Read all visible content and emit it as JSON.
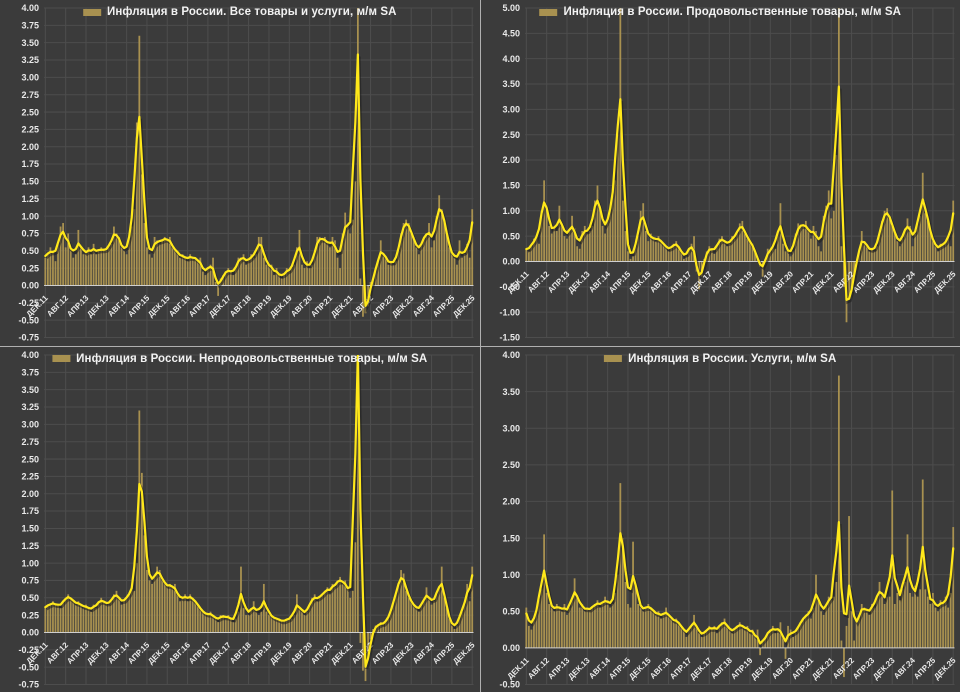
{
  "page": {
    "background": "#3b3b3b",
    "divider_color": "#b0b0b0"
  },
  "colors": {
    "bar": "#a89150",
    "line": "#ffe81a",
    "line_shadow": "#1e1e1e",
    "grid": "#4d4d4d",
    "axis_text": "#e9e9e9",
    "zero_line": "#cfcfcf"
  },
  "chart_data": {
    "type": "bar",
    "subtype": "bar with smoothed trend line overlay, 4 panels",
    "frequency": "monthly",
    "x_start": "ДЕК.11",
    "x_end": "ДЕК.25",
    "tick_every_months": 8,
    "x_tick_labels": [
      "ДЕК.11",
      "АВГ.12",
      "АПР.13",
      "ДЕК.13",
      "АВГ.14",
      "АПР.15",
      "ДЕК.15",
      "АВГ.16",
      "АПР.17",
      "ДЕК.17",
      "АВГ.18",
      "АПР.19",
      "ДЕК.19",
      "АВГ.20",
      "АПР.21",
      "ДЕК.21",
      "АВГ.22",
      "АПР.23",
      "ДЕК.23",
      "АВГ.24",
      "АПР.25",
      "ДЕК.25"
    ],
    "legend_position": "top-center inside plot",
    "grid": "on",
    "line_derivation": "smoothed trend of the same series (rendered as 5-point weighted moving average 0.1/0.2/0.4/0.2/0.1); bar values above y_max are clipped at chart top as in source",
    "charts": [
      {
        "legend": "Инфляция в России. Все товары и услуги, м/м SA",
        "y_min": -0.75,
        "y_max": 4.0,
        "y_step": 0.25,
        "values": [
          0.4,
          0.45,
          0.55,
          0.5,
          0.35,
          0.6,
          0.85,
          0.9,
          0.55,
          0.75,
          0.5,
          0.4,
          0.45,
          0.8,
          0.55,
          0.45,
          0.45,
          0.55,
          0.45,
          0.6,
          0.45,
          0.5,
          0.55,
          0.5,
          0.5,
          0.55,
          0.6,
          0.85,
          0.75,
          0.7,
          0.55,
          0.5,
          0.45,
          0.7,
          0.85,
          1.1,
          2.35,
          3.6,
          1.6,
          0.9,
          0.55,
          0.45,
          0.4,
          0.7,
          0.65,
          0.6,
          0.65,
          0.7,
          0.65,
          0.7,
          0.55,
          0.5,
          0.5,
          0.4,
          0.45,
          0.4,
          0.35,
          0.45,
          0.4,
          0.4,
          0.35,
          0.4,
          0.2,
          0.15,
          0.25,
          0.3,
          0.4,
          0.05,
          -0.15,
          0.1,
          0.15,
          0.2,
          0.25,
          0.2,
          0.15,
          0.25,
          0.4,
          0.4,
          0.45,
          0.3,
          0.35,
          0.45,
          0.4,
          0.45,
          0.7,
          0.7,
          0.4,
          0.3,
          0.3,
          0.3,
          0.15,
          0.25,
          0.15,
          0.1,
          0.15,
          0.25,
          0.2,
          0.25,
          0.3,
          0.55,
          0.8,
          0.3,
          0.25,
          0.35,
          0.25,
          0.3,
          0.45,
          0.7,
          0.7,
          0.65,
          0.7,
          0.6,
          0.55,
          0.7,
          0.65,
          0.4,
          0.25,
          0.75,
          1.05,
          0.85,
          0.75,
          0.95,
          1.5,
          7.4,
          0.1,
          -0.45,
          -0.4,
          -0.3,
          0.05,
          0.1,
          0.2,
          0.35,
          0.65,
          0.45,
          0.4,
          0.3,
          0.35,
          0.3,
          0.35,
          0.5,
          0.75,
          0.9,
          0.95,
          0.9,
          0.75,
          0.7,
          0.55,
          0.45,
          0.6,
          0.7,
          0.75,
          0.9,
          0.55,
          0.65,
          1.0,
          1.3,
          1.1,
          0.95,
          0.75,
          0.55,
          0.45,
          0.4,
          0.3,
          0.65,
          0.4,
          0.45,
          0.6,
          0.4,
          1.1
        ]
      },
      {
        "legend": "Инфляция в России. Продовольственные товары, м/м SA",
        "y_min": -1.5,
        "y_max": 5.0,
        "y_step": 0.5,
        "values": [
          0.25,
          0.2,
          0.3,
          0.45,
          0.5,
          0.35,
          1.0,
          1.6,
          1.1,
          0.7,
          0.55,
          0.65,
          0.6,
          1.1,
          0.75,
          0.5,
          0.45,
          0.6,
          0.9,
          0.65,
          0.3,
          0.25,
          0.6,
          0.7,
          0.55,
          0.6,
          0.7,
          1.2,
          1.5,
          1.1,
          0.7,
          0.55,
          0.8,
          1.0,
          1.3,
          1.6,
          2.5,
          5.6,
          1.2,
          0.6,
          0.2,
          0.05,
          0.1,
          0.3,
          0.5,
          1.0,
          1.15,
          0.6,
          0.4,
          0.55,
          0.45,
          0.4,
          0.5,
          0.4,
          0.35,
          0.3,
          0.2,
          0.25,
          0.35,
          0.4,
          0.3,
          0.2,
          0.05,
          0.1,
          0.25,
          0.35,
          0.5,
          -0.2,
          -0.55,
          -0.3,
          0.05,
          0.2,
          0.3,
          0.25,
          0.15,
          0.3,
          0.45,
          0.5,
          0.4,
          0.3,
          0.35,
          0.5,
          0.45,
          0.55,
          0.75,
          0.8,
          0.55,
          0.45,
          0.4,
          0.35,
          0.2,
          0.1,
          -0.1,
          -0.3,
          0.05,
          0.25,
          0.2,
          0.3,
          0.25,
          0.6,
          1.15,
          0.35,
          0.2,
          0.25,
          0.1,
          0.2,
          0.55,
          0.75,
          0.7,
          0.7,
          0.8,
          0.6,
          0.45,
          0.7,
          0.6,
          0.3,
          0.2,
          0.9,
          1.1,
          1.4,
          0.85,
          1.0,
          2.1,
          7.3,
          0.3,
          -0.5,
          -1.2,
          -0.75,
          -0.6,
          -0.25,
          0.0,
          0.2,
          0.6,
          0.4,
          0.3,
          0.2,
          0.25,
          0.2,
          0.3,
          0.55,
          0.8,
          1.0,
          1.05,
          0.9,
          0.7,
          0.6,
          0.4,
          0.3,
          0.45,
          0.65,
          0.85,
          0.7,
          0.3,
          0.55,
          0.75,
          0.9,
          1.75,
          0.95,
          0.8,
          0.6,
          0.4,
          0.3,
          0.2,
          0.35,
          0.3,
          0.4,
          0.5,
          0.3,
          1.2
        ]
      },
      {
        "legend": "Инфляция в России. Непродовольственные товары, м/м SA",
        "y_min": -0.75,
        "y_max": 4.0,
        "y_step": 0.25,
        "values": [
          0.35,
          0.4,
          0.4,
          0.45,
          0.4,
          0.4,
          0.35,
          0.45,
          0.5,
          0.55,
          0.5,
          0.45,
          0.4,
          0.45,
          0.4,
          0.35,
          0.4,
          0.35,
          0.3,
          0.4,
          0.35,
          0.45,
          0.5,
          0.45,
          0.4,
          0.4,
          0.45,
          0.55,
          0.6,
          0.5,
          0.4,
          0.45,
          0.5,
          0.55,
          0.65,
          0.6,
          1.0,
          3.2,
          2.3,
          1.4,
          0.9,
          0.75,
          0.7,
          0.8,
          0.95,
          0.9,
          0.75,
          0.7,
          0.65,
          0.7,
          0.65,
          0.7,
          0.55,
          0.45,
          0.5,
          0.55,
          0.45,
          0.55,
          0.5,
          0.45,
          0.4,
          0.35,
          0.3,
          0.25,
          0.25,
          0.3,
          0.25,
          0.2,
          0.15,
          0.25,
          0.25,
          0.2,
          0.25,
          0.2,
          0.15,
          0.2,
          0.3,
          0.95,
          0.35,
          0.25,
          0.25,
          0.35,
          0.45,
          0.3,
          0.25,
          0.3,
          0.7,
          0.3,
          0.25,
          0.25,
          0.2,
          0.2,
          0.2,
          0.15,
          0.15,
          0.2,
          0.2,
          0.2,
          0.25,
          0.55,
          0.35,
          0.3,
          0.25,
          0.3,
          0.4,
          0.5,
          0.55,
          0.45,
          0.5,
          0.55,
          0.6,
          0.65,
          0.55,
          0.7,
          0.65,
          0.75,
          0.8,
          0.7,
          0.75,
          0.65,
          0.5,
          0.6,
          1.3,
          9.5,
          -0.15,
          -0.55,
          -0.7,
          -0.4,
          -0.1,
          0.05,
          0.1,
          0.1,
          0.15,
          0.1,
          0.15,
          0.2,
          0.3,
          0.45,
          0.55,
          0.7,
          0.9,
          0.85,
          0.6,
          0.5,
          0.45,
          0.4,
          0.35,
          0.3,
          0.4,
          0.45,
          0.65,
          0.5,
          0.4,
          0.45,
          0.55,
          0.65,
          0.95,
          0.5,
          0.35,
          0.2,
          0.1,
          0.05,
          0.1,
          0.25,
          0.3,
          0.4,
          0.7,
          0.45,
          0.95
        ]
      },
      {
        "legend": "Инфляция в России. Услуги, м/м SA",
        "y_min": -0.5,
        "y_max": 4.0,
        "y_step": 0.5,
        "values": [
          0.55,
          0.3,
          0.25,
          0.4,
          0.5,
          0.65,
          0.8,
          1.55,
          0.75,
          0.6,
          0.55,
          0.5,
          0.6,
          0.55,
          0.5,
          0.6,
          0.45,
          0.55,
          0.65,
          0.95,
          0.7,
          0.55,
          0.6,
          0.5,
          0.55,
          0.5,
          0.55,
          0.6,
          0.65,
          0.55,
          0.6,
          0.7,
          0.65,
          0.55,
          0.6,
          0.75,
          1.0,
          2.25,
          1.5,
          0.9,
          0.6,
          0.55,
          1.45,
          0.85,
          0.6,
          0.55,
          0.5,
          0.55,
          0.6,
          0.55,
          0.5,
          0.45,
          0.5,
          0.4,
          0.45,
          0.55,
          0.45,
          0.4,
          0.35,
          0.4,
          0.35,
          0.3,
          0.25,
          0.15,
          0.25,
          0.3,
          0.45,
          0.3,
          0.2,
          0.15,
          0.2,
          0.25,
          0.3,
          0.25,
          0.3,
          0.2,
          0.3,
          0.35,
          0.4,
          0.3,
          0.25,
          0.2,
          0.25,
          0.3,
          0.35,
          0.3,
          0.25,
          0.3,
          0.2,
          0.25,
          0.15,
          0.25,
          -0.1,
          0.1,
          0.15,
          0.2,
          0.25,
          0.3,
          0.2,
          0.25,
          0.35,
          0.15,
          -0.15,
          0.3,
          0.25,
          0.15,
          0.2,
          0.3,
          0.35,
          0.4,
          0.45,
          0.5,
          0.4,
          0.55,
          1.0,
          0.65,
          0.5,
          0.45,
          0.6,
          0.7,
          0.65,
          0.7,
          0.9,
          3.72,
          0.1,
          -0.4,
          0.3,
          1.8,
          0.5,
          0.1,
          0.35,
          0.45,
          0.6,
          0.55,
          0.5,
          0.45,
          0.6,
          0.55,
          0.7,
          0.9,
          0.75,
          0.6,
          0.7,
          0.7,
          2.15,
          0.6,
          0.75,
          0.65,
          0.8,
          0.9,
          1.55,
          0.75,
          0.7,
          0.85,
          0.7,
          0.8,
          2.3,
          0.8,
          0.7,
          0.6,
          0.75,
          0.55,
          0.5,
          0.65,
          0.6,
          0.7,
          0.55,
          0.75,
          1.65
        ]
      }
    ]
  }
}
